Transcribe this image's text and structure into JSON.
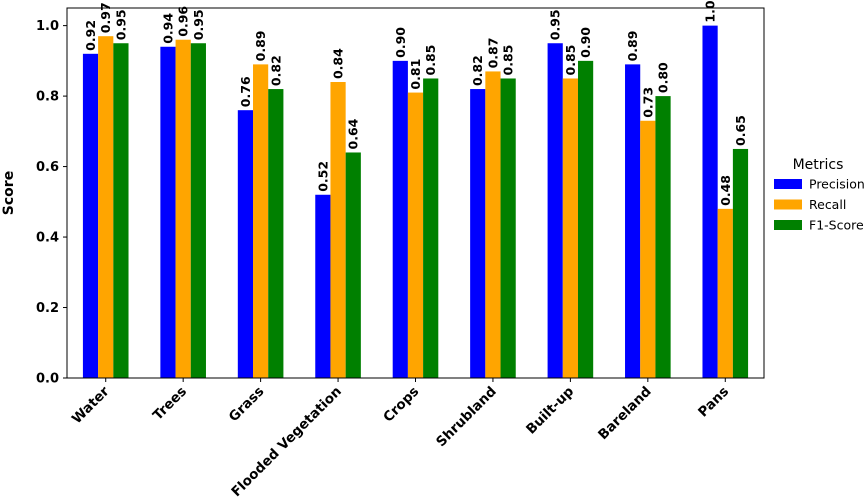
{
  "chart_data": {
    "type": "bar",
    "categories": [
      "Water",
      "Trees",
      "Grass",
      "Flooded Vegetation",
      "Crops",
      "Shrubland",
      "Built-up",
      "Bareland",
      "Pans"
    ],
    "series": [
      {
        "name": "Precision",
        "color": "#0000ff",
        "values": [
          0.92,
          0.94,
          0.76,
          0.52,
          0.9,
          0.82,
          0.95,
          0.89,
          1.0
        ]
      },
      {
        "name": "Recall",
        "color": "#ffa500",
        "values": [
          0.97,
          0.96,
          0.89,
          0.84,
          0.81,
          0.87,
          0.85,
          0.73,
          0.48
        ]
      },
      {
        "name": "F1-Score",
        "color": "#008000",
        "values": [
          0.95,
          0.95,
          0.82,
          0.64,
          0.85,
          0.85,
          0.9,
          0.8,
          0.65
        ]
      }
    ],
    "title": "",
    "xlabel": "",
    "ylabel": "Score",
    "ylim": [
      0,
      1.05
    ],
    "yticks": [
      "0.0",
      "0.2",
      "0.4",
      "0.6",
      "0.8",
      "1.0"
    ],
    "legend": {
      "title": "Metrics",
      "placement": "outside-right"
    },
    "grid": false
  }
}
